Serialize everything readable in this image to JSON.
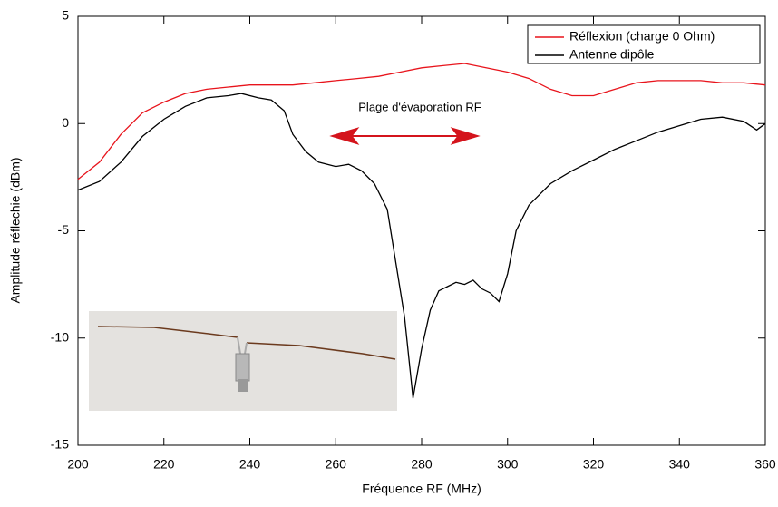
{
  "chart_data": {
    "type": "line",
    "xlabel": "Fréquence RF (MHz)",
    "ylabel": "Amplitude réflechie (dBm)",
    "annotation": "Plage d'évaporation RF",
    "xlim": [
      200,
      360
    ],
    "xticks": [
      200,
      220,
      240,
      260,
      280,
      300,
      320,
      340,
      360
    ],
    "ylim": [
      -15,
      5
    ],
    "yticks": [
      -15,
      -10,
      -5,
      0,
      5
    ],
    "legend": "upper right",
    "series": [
      {
        "name": "Réflexion (charge 0 Ohm)",
        "color": "#e8141c",
        "x": [
          200,
          205,
          210,
          215,
          220,
          225,
          230,
          235,
          240,
          245,
          250,
          255,
          260,
          265,
          270,
          275,
          280,
          285,
          290,
          295,
          300,
          305,
          310,
          315,
          320,
          325,
          330,
          335,
          340,
          345,
          350,
          355,
          360
        ],
        "values": [
          -2.6,
          -1.8,
          -0.5,
          0.5,
          1.0,
          1.4,
          1.6,
          1.7,
          1.8,
          1.8,
          1.8,
          1.9,
          2.0,
          2.1,
          2.2,
          2.4,
          2.6,
          2.7,
          2.8,
          2.6,
          2.4,
          2.1,
          1.6,
          1.3,
          1.3,
          1.6,
          1.9,
          2.0,
          2.0,
          2.0,
          1.9,
          1.9,
          1.8
        ]
      },
      {
        "name": "Antenne dipôle",
        "color": "#000000",
        "x": [
          200,
          205,
          210,
          215,
          220,
          225,
          230,
          235,
          238,
          242,
          245,
          248,
          250,
          253,
          256,
          260,
          263,
          266,
          269,
          272,
          274,
          276,
          278,
          280,
          282,
          284,
          286,
          288,
          290,
          292,
          294,
          296,
          298,
          300,
          302,
          305,
          310,
          315,
          320,
          325,
          330,
          335,
          340,
          345,
          350,
          355,
          358,
          360
        ],
        "values": [
          -3.1,
          -2.7,
          -1.8,
          -0.6,
          0.2,
          0.8,
          1.2,
          1.3,
          1.4,
          1.2,
          1.1,
          0.6,
          -0.5,
          -1.3,
          -1.8,
          -2.0,
          -1.9,
          -2.2,
          -2.8,
          -4.0,
          -6.5,
          -9.0,
          -12.8,
          -10.5,
          -8.7,
          -7.8,
          -7.6,
          -7.4,
          -7.5,
          -7.3,
          -7.7,
          -7.9,
          -8.3,
          -7.0,
          -5.0,
          -3.8,
          -2.8,
          -2.2,
          -1.7,
          -1.2,
          -0.8,
          -0.4,
          -0.1,
          0.2,
          0.3,
          0.1,
          -0.3,
          0.0
        ]
      }
    ]
  }
}
